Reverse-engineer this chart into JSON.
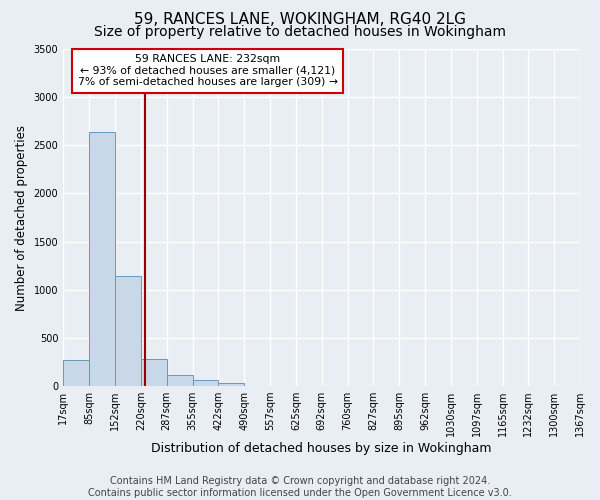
{
  "title": "59, RANCES LANE, WOKINGHAM, RG40 2LG",
  "subtitle": "Size of property relative to detached houses in Wokingham",
  "xlabel": "Distribution of detached houses by size in Wokingham",
  "ylabel": "Number of detached properties",
  "bin_edges": [
    17,
    85,
    152,
    220,
    287,
    355,
    422,
    490,
    557,
    625,
    692,
    760,
    827,
    895,
    962,
    1030,
    1097,
    1165,
    1232,
    1300,
    1367
  ],
  "bar_heights": [
    270,
    2640,
    1140,
    280,
    110,
    60,
    30,
    5,
    3,
    0,
    0,
    0,
    0,
    0,
    0,
    0,
    0,
    0,
    0,
    0
  ],
  "bar_color": "#c8d8e8",
  "bar_edge_color": "#6699bb",
  "bar_linewidth": 0.7,
  "property_line_x": 232,
  "property_line_color": "#990000",
  "ylim": [
    0,
    3500
  ],
  "yticks": [
    0,
    500,
    1000,
    1500,
    2000,
    2500,
    3000,
    3500
  ],
  "background_color": "#e8eef4",
  "grid_color": "#ffffff",
  "annotation_lines": [
    "59 RANCES LANE: 232sqm",
    "← 93% of detached houses are smaller (4,121)",
    "7% of semi-detached houses are larger (309) →"
  ],
  "annotation_box_color": "#cc0000",
  "footer_line1": "Contains HM Land Registry data © Crown copyright and database right 2024.",
  "footer_line2": "Contains public sector information licensed under the Open Government Licence v3.0.",
  "title_fontsize": 11,
  "subtitle_fontsize": 10,
  "tick_label_fontsize": 7,
  "ylabel_fontsize": 8.5,
  "xlabel_fontsize": 9,
  "footer_fontsize": 7
}
